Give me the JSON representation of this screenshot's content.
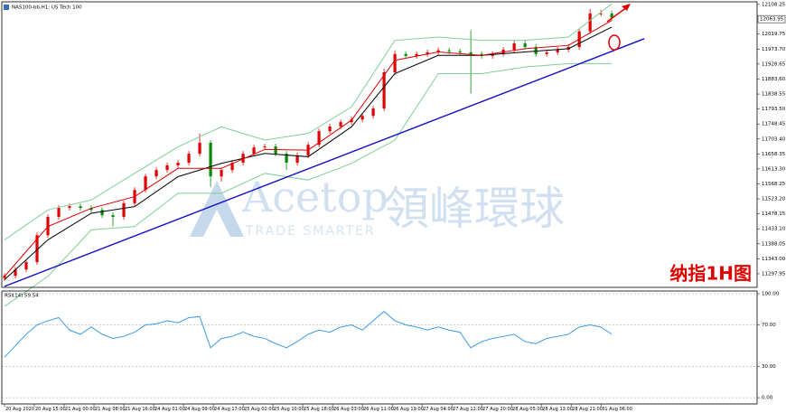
{
  "chart_data": [
    {
      "type": "candlestick",
      "title": "NAS100-bb,H1: US Tech 100",
      "open": [
        11285,
        11292,
        11311,
        11333,
        11414,
        11469,
        11496,
        11501,
        11496,
        11490,
        11474,
        11469,
        11510,
        11550,
        11591,
        11610,
        11624,
        11632,
        11659,
        11692,
        11591,
        11610,
        11632,
        11659,
        11678,
        11681,
        11659,
        11632,
        11654,
        11686,
        11727,
        11741,
        11754,
        11762,
        11773,
        11795,
        11904,
        11959,
        11953,
        11959,
        11964,
        11970,
        11967,
        11964,
        11959,
        11953,
        11959,
        11972,
        11991,
        11980,
        11959,
        11964,
        11972,
        11980,
        12027,
        12081,
        12081
      ],
      "high": [
        11300,
        11319,
        11341,
        11422,
        11477,
        11504,
        11509,
        11509,
        11504,
        11498,
        11482,
        11518,
        11558,
        11599,
        11618,
        11632,
        11640,
        11667,
        11720,
        11700,
        11618,
        11640,
        11667,
        11686,
        11689,
        11689,
        11667,
        11662,
        11694,
        11735,
        11749,
        11762,
        11770,
        11781,
        11803,
        11915,
        11970,
        11967,
        11967,
        11972,
        11978,
        11978,
        11975,
        12030,
        11967,
        11967,
        11980,
        11999,
        11999,
        11988,
        11972,
        11980,
        11988,
        12035,
        12095,
        12092,
        12089
      ],
      "low": [
        11277,
        11284,
        11303,
        11325,
        11406,
        11461,
        11488,
        11488,
        11482,
        11466,
        11440,
        11461,
        11502,
        11542,
        11583,
        11602,
        11616,
        11624,
        11651,
        11560,
        11575,
        11602,
        11624,
        11651,
        11670,
        11651,
        11610,
        11624,
        11646,
        11678,
        11719,
        11733,
        11746,
        11754,
        11765,
        11787,
        11896,
        11945,
        11945,
        11951,
        11956,
        11959,
        11956,
        11840,
        11945,
        11945,
        11951,
        11964,
        11972,
        11951,
        11951,
        11956,
        11964,
        11972,
        12019,
        12073,
        12060
      ],
      "close": [
        11292,
        11311,
        11333,
        11414,
        11469,
        11496,
        11501,
        11496,
        11490,
        11474,
        11469,
        11510,
        11550,
        11591,
        11610,
        11624,
        11632,
        11659,
        11692,
        11591,
        11610,
        11632,
        11659,
        11678,
        11681,
        11659,
        11632,
        11654,
        11686,
        11727,
        11741,
        11754,
        11762,
        11773,
        11795,
        11904,
        11959,
        11953,
        11959,
        11964,
        11970,
        11967,
        11964,
        11959,
        11953,
        11959,
        11972,
        11991,
        11980,
        11959,
        11964,
        11972,
        11980,
        12027,
        12081,
        12081,
        12068
      ],
      "up_color": "#e00000",
      "down_color": "#008c00",
      "overlays": [
        {
          "color": "#7fcf95",
          "x": [
            0,
            4,
            8,
            12,
            16,
            20,
            24,
            28,
            32,
            36,
            40,
            44,
            48,
            52,
            56
          ],
          "values": [
            11400,
            11490,
            11520,
            11600,
            11680,
            11740,
            11700,
            11720,
            11800,
            12000,
            12010,
            12000,
            12000,
            12010,
            12110
          ]
        },
        {
          "color": "#7fcf95",
          "x": [
            0,
            4,
            8,
            12,
            16,
            20,
            24,
            28,
            32,
            36,
            40,
            44,
            48,
            52,
            56
          ],
          "values": [
            11200,
            11290,
            11430,
            11440,
            11540,
            11540,
            11600,
            11580,
            11630,
            11700,
            11900,
            11900,
            11920,
            11930,
            11930
          ]
        },
        {
          "color": "#000000",
          "x": [
            0,
            4,
            8,
            12,
            16,
            20,
            24,
            28,
            32,
            36,
            40,
            44,
            48,
            52,
            56
          ],
          "values": [
            11280,
            11400,
            11480,
            11500,
            11590,
            11630,
            11660,
            11650,
            11740,
            11900,
            11955,
            11955,
            11965,
            11975,
            12040
          ]
        },
        {
          "color": "#e00000",
          "x": [
            0,
            4,
            8,
            12,
            16,
            20,
            24,
            28,
            32,
            36,
            40,
            44,
            48,
            52,
            56
          ],
          "values": [
            11290,
            11440,
            11495,
            11530,
            11615,
            11615,
            11672,
            11670,
            11760,
            11940,
            11965,
            11955,
            11975,
            11985,
            12060
          ]
        }
      ],
      "trendline": {
        "color": "#1010c0",
        "x": [
          0,
          59
        ],
        "values": [
          11260,
          12005
        ]
      },
      "xlim": [
        -0.25,
        69.4
      ],
      "ylim": [
        11257,
        12116
      ],
      "yticks": [
        {
          "value": 12108.25,
          "label": "12108.25"
        },
        {
          "value": 12019.75,
          "label": "12019.75"
        },
        {
          "value": 11973.7,
          "label": "11973.70"
        },
        {
          "value": 11928.65,
          "label": "11928.65"
        },
        {
          "value": 11883.6,
          "label": "11883.60"
        },
        {
          "value": 11838.55,
          "label": "11838.55"
        },
        {
          "value": 11793.5,
          "label": "11793.50"
        },
        {
          "value": 11748.45,
          "label": "11748.45"
        },
        {
          "value": 11703.4,
          "label": "11703.40"
        },
        {
          "value": 11658.35,
          "label": "11658.35"
        },
        {
          "value": 11613.3,
          "label": "11613.30"
        },
        {
          "value": 11568.25,
          "label": "11568.25"
        },
        {
          "value": 11523.2,
          "label": "11523.20"
        },
        {
          "value": 11478.15,
          "label": "11478.15"
        },
        {
          "value": 11433.1,
          "label": "11433.10"
        },
        {
          "value": 11388.05,
          "label": "11388.05"
        },
        {
          "value": 11343,
          "label": "11343.00"
        },
        {
          "value": 11297.95,
          "label": "11297.95"
        }
      ],
      "last_price": 12063.95,
      "annotation": "纳指1H图"
    },
    {
      "type": "line",
      "title": "RSI(14) 59.54",
      "color": "#3d9be9",
      "values": [
        39,
        50,
        61,
        70,
        74,
        77,
        65,
        61,
        68,
        61,
        57,
        59,
        63,
        70,
        71,
        74,
        72,
        77,
        78,
        48,
        57,
        59,
        63,
        59,
        57,
        52,
        48,
        54,
        61,
        65,
        63,
        68,
        70,
        65,
        74,
        83,
        74,
        70,
        68,
        65,
        68,
        65,
        63,
        48,
        54,
        57,
        59,
        61,
        54,
        52,
        57,
        59,
        61,
        68,
        70,
        68,
        61
      ],
      "xlim": [
        -0.25,
        69.4
      ],
      "ylim": [
        -6,
        102.6
      ],
      "yticks": [
        {
          "value": 100,
          "label": "100.00"
        },
        {
          "value": 70,
          "label": "70.00"
        },
        {
          "value": 30,
          "label": "30.00"
        },
        {
          "value": 0,
          "label": "0.00"
        }
      ],
      "xticks": [
        {
          "value": 0,
          "label": "20 Aug 2020"
        },
        {
          "value": 2.75,
          "label": "20 Aug 15:00"
        },
        {
          "value": 5.5,
          "label": "21 Aug 00:00"
        },
        {
          "value": 8.25,
          "label": "21 Aug 08:00"
        },
        {
          "value": 11,
          "label": "21 Aug 16:00"
        },
        {
          "value": 13.75,
          "label": "24 Aug 01:00"
        },
        {
          "value": 16.5,
          "label": "24 Aug 09:00"
        },
        {
          "value": 19.25,
          "label": "24 Aug 17:00"
        },
        {
          "value": 22,
          "label": "25 Aug 02:00"
        },
        {
          "value": 24.75,
          "label": "25 Aug 10:00"
        },
        {
          "value": 27.5,
          "label": "25 Aug 18:00"
        },
        {
          "value": 30.25,
          "label": "26 Aug 03:00"
        },
        {
          "value": 33,
          "label": "26 Aug 11:00"
        },
        {
          "value": 35.75,
          "label": "26 Aug 19:00"
        },
        {
          "value": 38.5,
          "label": "27 Aug 04:00"
        },
        {
          "value": 41.25,
          "label": "27 Aug 12:00"
        },
        {
          "value": 44,
          "label": "27 Aug 20:00"
        },
        {
          "value": 46.75,
          "label": "28 Aug 05:00"
        },
        {
          "value": 49.5,
          "label": "28 Aug 13:00"
        },
        {
          "value": 52.25,
          "label": "28 Aug 21:00"
        },
        {
          "value": 55,
          "label": "31 Aug 06:00"
        }
      ]
    }
  ],
  "watermark": {
    "brand": "Acetop",
    "chinese": "領峰環球",
    "tagline": "TRADE SMARTER"
  }
}
